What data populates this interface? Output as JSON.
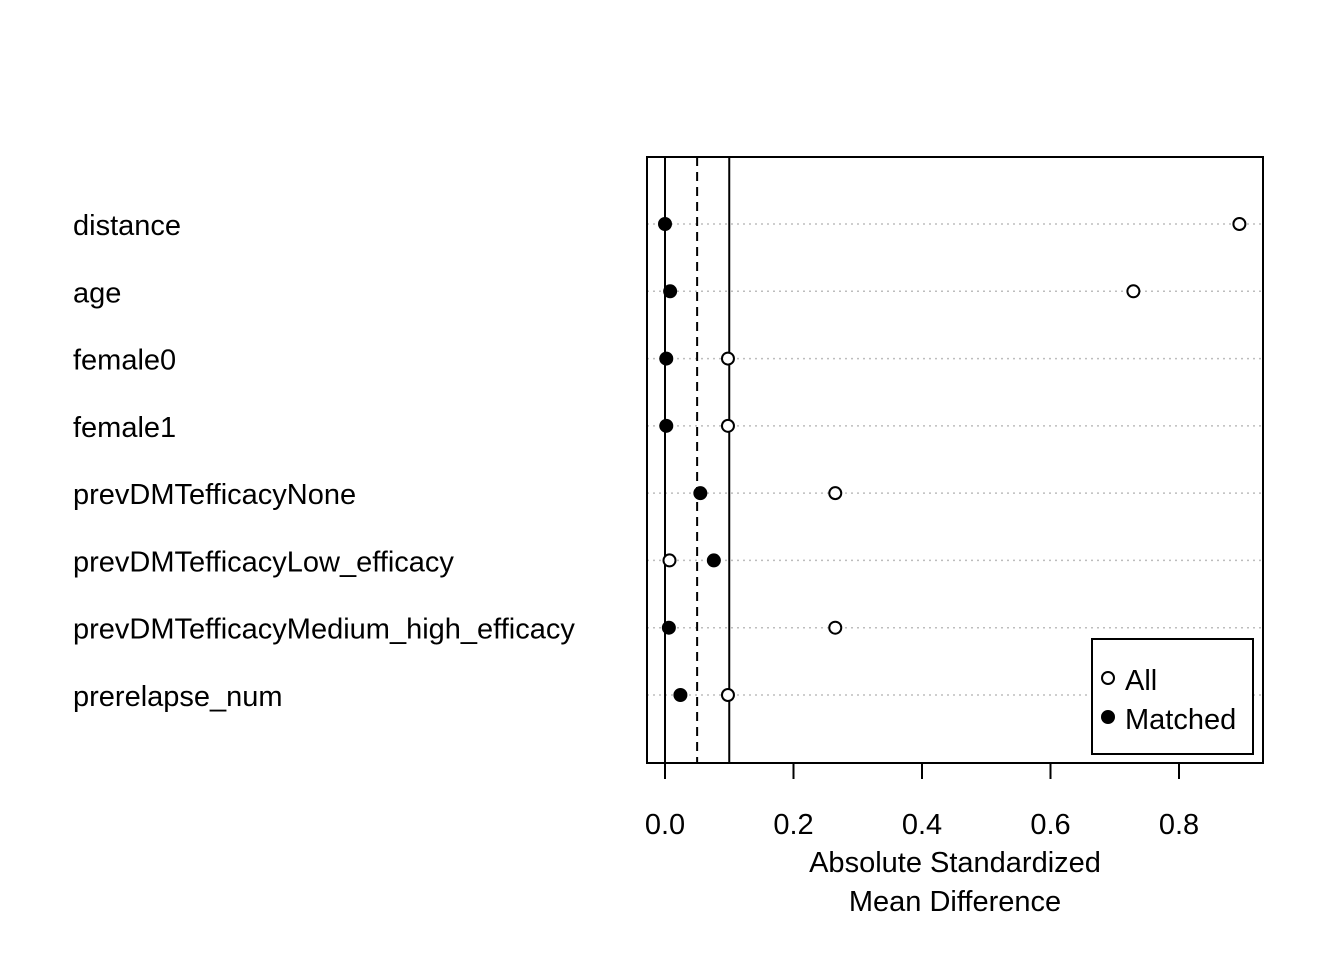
{
  "chart_data": {
    "type": "scatter",
    "xlabel_lines": [
      "Absolute Standardized",
      "Mean Difference"
    ],
    "xlim": [
      -0.03,
      0.93
    ],
    "xticks": [
      0.0,
      0.2,
      0.4,
      0.6,
      0.8
    ],
    "tick_labels": [
      "0.0",
      "0.2",
      "0.4",
      "0.6",
      "0.8"
    ],
    "reference_lines": {
      "solid": [
        0.0,
        0.1
      ],
      "dashed": [
        0.05
      ]
    },
    "grid": "horizontal dotted",
    "legend_position": "bottom-right",
    "categories": [
      "distance",
      "age",
      "female0",
      "female1",
      "prevDMTefficacyNone",
      "prevDMTefficacyLow_efficacy",
      "prevDMTefficacyMedium_high_efficacy",
      "prerelapse_num"
    ],
    "series": [
      {
        "name": "All",
        "marker": "open-circle",
        "values": [
          0.894,
          0.729,
          0.098,
          0.098,
          0.265,
          0.007,
          0.265,
          0.098
        ]
      },
      {
        "name": "Matched",
        "marker": "filled-circle",
        "values": [
          0.0,
          0.008,
          0.002,
          0.002,
          0.055,
          0.076,
          0.006,
          0.024
        ]
      }
    ]
  }
}
